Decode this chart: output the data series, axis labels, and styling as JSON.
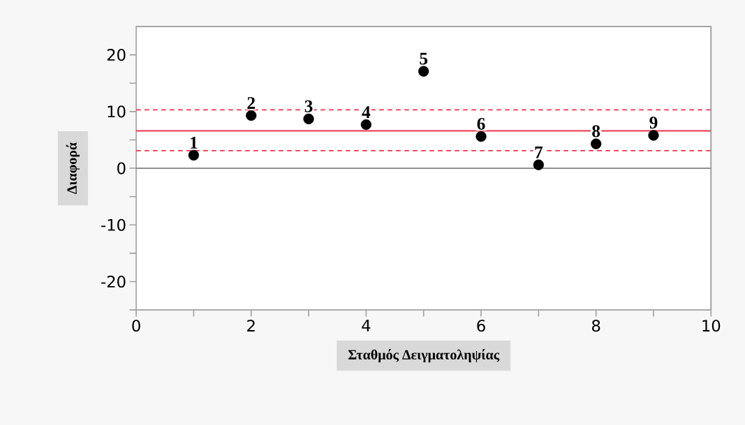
{
  "chart_data": {
    "type": "scatter",
    "xlabel": "Σταθμός Δειγματοληψίας",
    "ylabel": "Διαφορά",
    "x": [
      1,
      2,
      3,
      4,
      5,
      6,
      7,
      8,
      9
    ],
    "values": [
      2.3,
      9.3,
      8.7,
      7.7,
      17.1,
      5.6,
      0.6,
      4.3,
      5.8
    ],
    "color": "#000000",
    "xlim": [
      0,
      10
    ],
    "ylim": [
      -25,
      25
    ],
    "xticks": [
      0,
      {
        "value": 1,
        "label": null
      },
      2,
      {
        "value": 3,
        "label": null
      },
      4,
      {
        "value": 5,
        "label": null
      },
      6,
      {
        "value": 7,
        "label": null
      },
      8,
      {
        "value": 9,
        "label": null
      },
      10
    ],
    "yticks": [
      {
        "value": -25,
        "label": null
      },
      -20,
      {
        "value": -15,
        "label": null
      },
      -10,
      {
        "value": -5,
        "label": null
      },
      0,
      {
        "value": 5,
        "label": null
      },
      10,
      {
        "value": 15,
        "label": null
      },
      20
    ],
    "ref_lines": [
      {
        "axis": "y",
        "value": 0,
        "color": "#808080",
        "line_style": "solid"
      },
      {
        "axis": "y",
        "value": 6.6,
        "color": "#f0314a",
        "line_style": "solid"
      },
      {
        "axis": "y",
        "value": 10.3,
        "color": "#f0314a",
        "line_style": "dashed"
      },
      {
        "axis": "y",
        "value": 3.1,
        "color": "#f0314a",
        "line_style": "dashed"
      }
    ],
    "annotations": [
      {
        "text": "1",
        "x": 1,
        "y": 2.3
      },
      {
        "text": "2",
        "x": 2,
        "y": 9.3
      },
      {
        "text": "3",
        "x": 3,
        "y": 8.7
      },
      {
        "text": "4",
        "x": 4,
        "y": 7.7
      },
      {
        "text": "5",
        "x": 5,
        "y": 17.1
      },
      {
        "text": "6",
        "x": 6,
        "y": 5.6
      },
      {
        "text": "7",
        "x": 7,
        "y": 0.6
      },
      {
        "text": "8",
        "x": 8,
        "y": 4.3
      },
      {
        "text": "9",
        "x": 9,
        "y": 5.8
      }
    ]
  }
}
